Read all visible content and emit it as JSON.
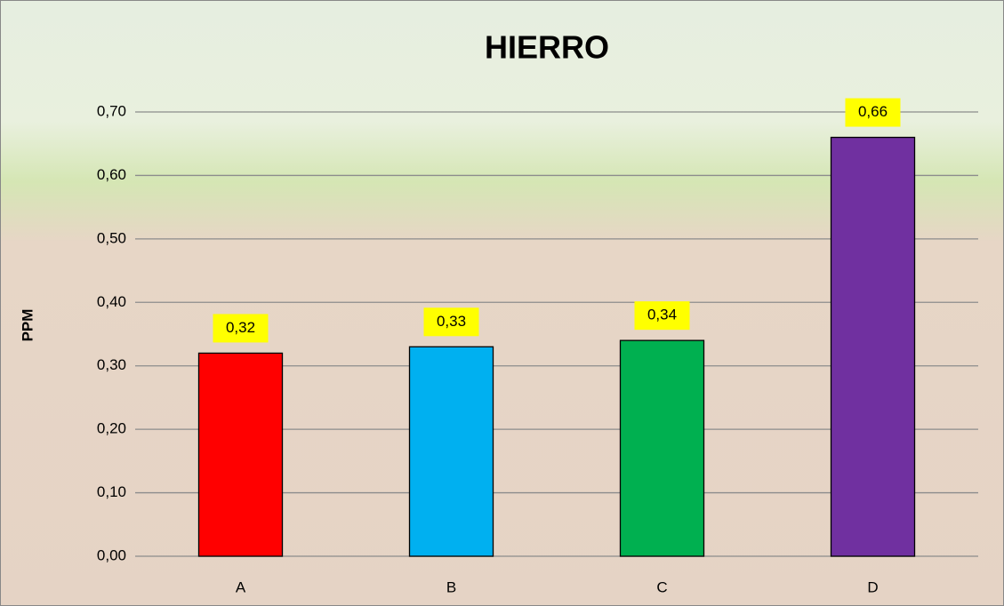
{
  "chart_data": {
    "type": "bar",
    "title": "HIERRO",
    "y_label": "PPM",
    "categories": [
      "A",
      "B",
      "C",
      "D"
    ],
    "values": [
      0.32,
      0.33,
      0.34,
      0.66
    ],
    "value_labels": [
      "0,32",
      "0,33",
      "0,34",
      "0,66"
    ],
    "colors": [
      "#ff0000",
      "#00b0f0",
      "#00b050",
      "#7030a0"
    ],
    "ylim": [
      0,
      0.7
    ],
    "yticks": [
      {
        "value": 0,
        "label": "0,00"
      },
      {
        "value": 0.1,
        "label": "0,10"
      },
      {
        "value": 0.2,
        "label": "0,20"
      },
      {
        "value": 0.3,
        "label": "0,30"
      },
      {
        "value": 0.4,
        "label": "0,40"
      },
      {
        "value": 0.5,
        "label": "0,50"
      },
      {
        "value": 0.6,
        "label": "0,60"
      },
      {
        "value": 0.7,
        "label": "0,70"
      }
    ],
    "grid": true
  }
}
